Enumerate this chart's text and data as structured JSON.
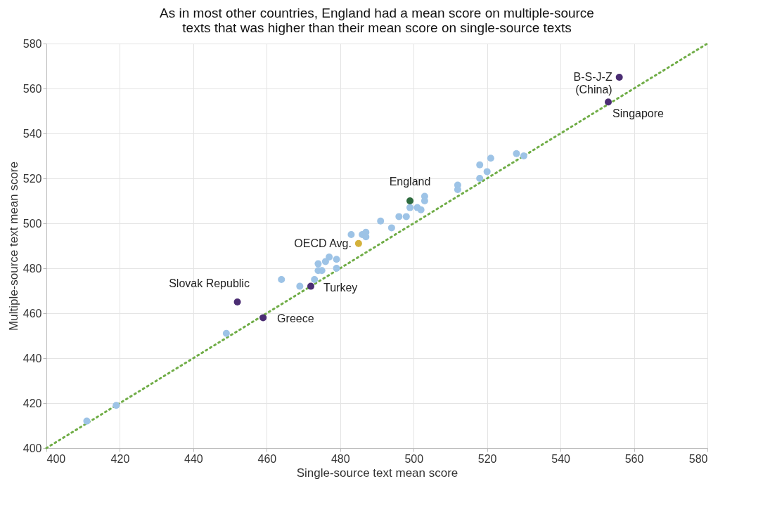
{
  "chart_data": {
    "type": "scatter",
    "title": "As in most other countries, England had a mean score on multiple-source texts that was higher than their mean score on single-source texts",
    "xlabel": "Single-source text mean score",
    "ylabel": "Multiple-source text mean score",
    "xlim": [
      400,
      580
    ],
    "xticks": [
      400,
      420,
      440,
      460,
      480,
      500,
      520,
      540,
      560,
      580
    ],
    "ylim": [
      400,
      580
    ],
    "yticks": [
      400,
      420,
      440,
      460,
      480,
      500,
      520,
      540,
      560,
      580
    ],
    "grid": true,
    "marker": "circle",
    "series": [
      {
        "type": "line",
        "color": "#70ad47",
        "line_style": "dotted",
        "marker": "none",
        "x": [
          400,
          580
        ],
        "values": [
          400,
          580
        ]
      },
      {
        "color": "#9dc3e6",
        "x": [
          411,
          419,
          449,
          464,
          469,
          473,
          474,
          474,
          475,
          476,
          477,
          479,
          479,
          483,
          486,
          487,
          487,
          491,
          494,
          496,
          498,
          499,
          501,
          502,
          503,
          503,
          512,
          512,
          518,
          518,
          520,
          521,
          528,
          530
        ],
        "values": [
          412,
          419,
          451,
          475,
          472,
          475,
          482,
          479,
          479,
          483,
          485,
          484,
          480,
          495,
          495,
          496,
          494,
          501,
          498,
          503,
          503,
          507,
          507,
          506,
          512,
          510,
          517,
          515,
          526,
          520,
          523,
          529,
          531,
          530
        ]
      },
      {
        "color": "#4b2d73",
        "x": [
          556,
          553,
          452,
          472,
          459
        ],
        "values": [
          565,
          554,
          465,
          472,
          458
        ]
      },
      {
        "color": "#2e6b3e",
        "x": [
          499
        ],
        "values": [
          510
        ]
      },
      {
        "color": "#d4b13a",
        "x": [
          485
        ],
        "values": [
          491
        ]
      }
    ],
    "annotations": [
      {
        "text": "B-S-J-Z\n(China)",
        "x": 556,
        "y": 565
      },
      {
        "text": "Singapore",
        "x": 553,
        "y": 554
      },
      {
        "text": "England",
        "x": 499,
        "y": 510
      },
      {
        "text": "OECD Avg.",
        "x": 485,
        "y": 491
      },
      {
        "text": "Slovak Republic",
        "x": 452,
        "y": 465
      },
      {
        "text": "Turkey",
        "x": 472,
        "y": 472
      },
      {
        "text": "Greece",
        "x": 459,
        "y": 458
      }
    ]
  }
}
